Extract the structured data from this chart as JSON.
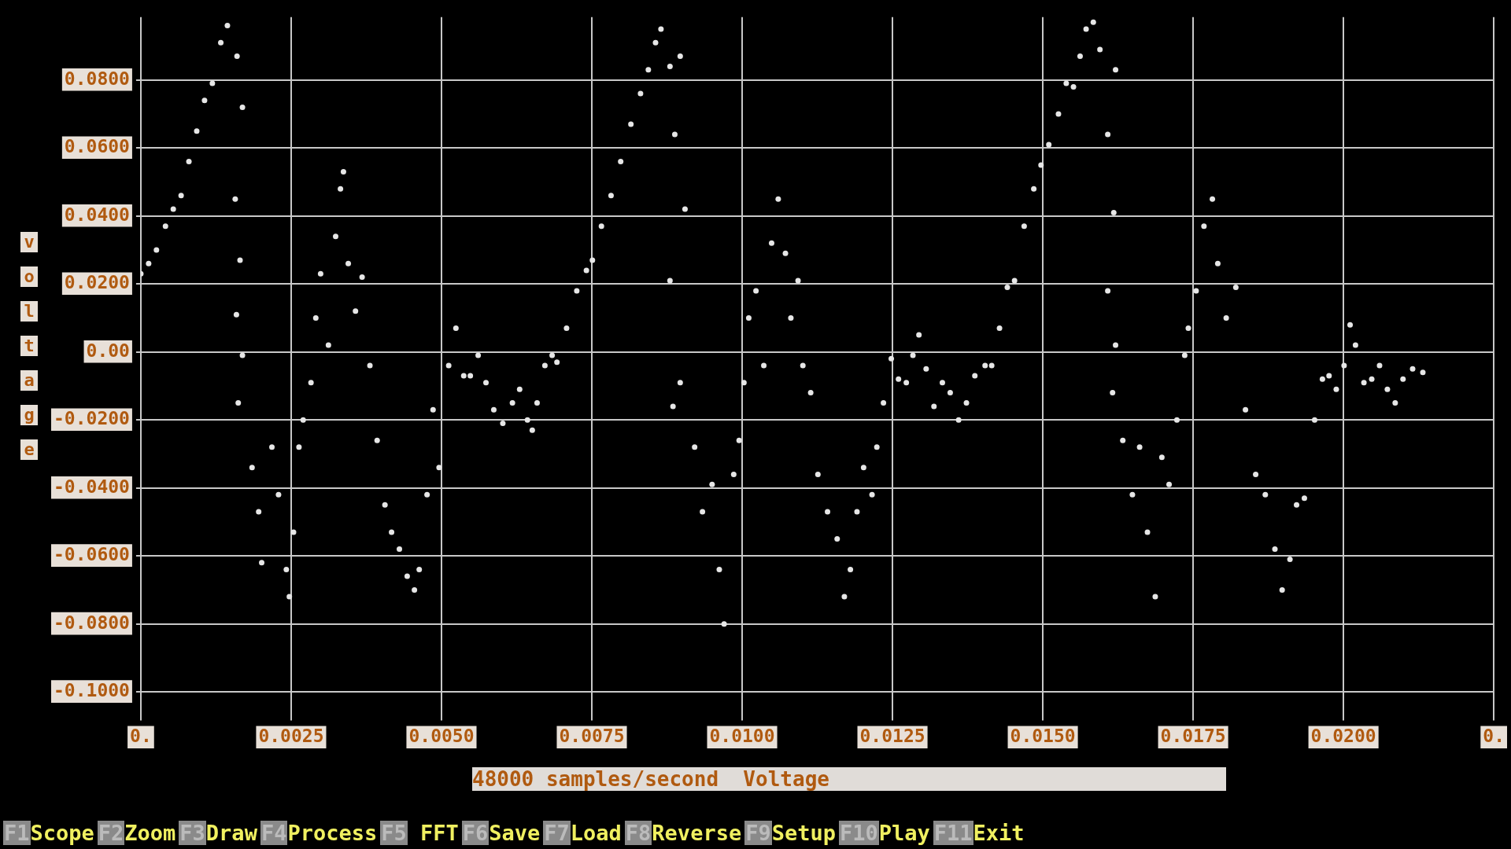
{
  "chart_data": {
    "type": "scatter",
    "xlabel": "48000 samples/second  Voltage",
    "ylabel": "voltage",
    "xlim": [
      0,
      0.0225
    ],
    "xticks": [
      {
        "value": 0,
        "label": "0."
      },
      {
        "value": 0.0025,
        "label": "0.0025"
      },
      {
        "value": 0.005,
        "label": "0.0050"
      },
      {
        "value": 0.0075,
        "label": "0.0075"
      },
      {
        "value": 0.01,
        "label": "0.0100"
      },
      {
        "value": 0.0125,
        "label": "0.0125"
      },
      {
        "value": 0.015,
        "label": "0.0150"
      },
      {
        "value": 0.0175,
        "label": "0.0175"
      },
      {
        "value": 0.02,
        "label": "0.0200"
      },
      {
        "value": 0.0225,
        "label": "0."
      }
    ],
    "ylim": [
      -0.107,
      0.0985
    ],
    "yticks": [
      {
        "value": 0.08,
        "label": "0.0800"
      },
      {
        "value": 0.06,
        "label": "0.0600"
      },
      {
        "value": 0.04,
        "label": "0.0400"
      },
      {
        "value": 0.02,
        "label": "0.0200"
      },
      {
        "value": 0,
        "label": "0.00"
      },
      {
        "value": -0.02,
        "label": "-0.0200"
      },
      {
        "value": -0.04,
        "label": "-0.0400"
      },
      {
        "value": -0.06,
        "label": "-0.0600"
      },
      {
        "value": -0.08,
        "label": "-0.0800"
      },
      {
        "value": -0.1,
        "label": "-0.1000"
      }
    ],
    "grid": true,
    "marker": "circle",
    "series": [
      {
        "color": "#e6e6e6",
        "x": [
          0,
          0.00013,
          0.00026,
          0.00041,
          0.00054,
          0.00067,
          0.0008,
          0.00093,
          0.00106,
          0.00119,
          0.00133,
          0.00144,
          0.0016,
          0.00169,
          0.00157,
          0.00165,
          0.00159,
          0.00169,
          0.00162,
          0.00185,
          0.00196,
          0.00201,
          0.00218,
          0.00229,
          0.00242,
          0.00247,
          0.00254,
          0.00263,
          0.0027,
          0.00283,
          0.00291,
          0.00299,
          0.00312,
          0.00324,
          0.00332,
          0.00337,
          0.00345,
          0.00357,
          0.00368,
          0.00381,
          0.00393,
          0.00406,
          0.00417,
          0.0043,
          0.00443,
          0.00455,
          0.00463,
          0.00476,
          0.00486,
          0.00496,
          0.00512,
          0.00524,
          0.00537,
          0.00548,
          0.00561,
          0.00574,
          0.00587,
          0.00602,
          0.00618,
          0.0063,
          0.00643,
          0.00651,
          0.00659,
          0.00672,
          0.00684,
          0.00692,
          0.00708,
          0.00725,
          0.00741,
          0.00751,
          0.00766,
          0.00782,
          0.00798,
          0.00815,
          0.00831,
          0.00844,
          0.00856,
          0.00865,
          0.0088,
          0.00897,
          0.00888,
          0.00905,
          0.0088,
          0.00897,
          0.00885,
          0.00921,
          0.00934,
          0.0095,
          0.00962,
          0.0097,
          0.00986,
          0.00995,
          0.01003,
          0.01011,
          0.01023,
          0.01036,
          0.01049,
          0.0106,
          0.01072,
          0.01081,
          0.01093,
          0.01101,
          0.01114,
          0.01126,
          0.01142,
          0.01158,
          0.0117,
          0.0118,
          0.01191,
          0.01202,
          0.01216,
          0.01224,
          0.01235,
          0.01248,
          0.0126,
          0.01273,
          0.01284,
          0.01294,
          0.01306,
          0.01319,
          0.01333,
          0.01346,
          0.0136,
          0.01373,
          0.01387,
          0.01404,
          0.01415,
          0.01428,
          0.01441,
          0.01453,
          0.01469,
          0.01485,
          0.01497,
          0.0151,
          0.01526,
          0.01539,
          0.01551,
          0.01562,
          0.01572,
          0.01584,
          0.01595,
          0.01608,
          0.01621,
          0.01618,
          0.01608,
          0.01621,
          0.01616,
          0.01633,
          0.01649,
          0.01661,
          0.01674,
          0.01687,
          0.01698,
          0.0171,
          0.01723,
          0.01736,
          0.01742,
          0.01755,
          0.01768,
          0.01782,
          0.01791,
          0.01805,
          0.01821,
          0.01837,
          0.01854,
          0.0187,
          0.01886,
          0.01898,
          0.01911,
          0.01922,
          0.01935,
          0.01952,
          0.01965,
          0.01976,
          0.01988,
          0.02001,
          0.02011,
          0.0202,
          0.02034,
          0.02047,
          0.0206,
          0.02073,
          0.02086,
          0.02099,
          0.02115,
          0.02132
        ],
        "values": [
          0.023,
          0.026,
          0.03,
          0.037,
          0.042,
          0.046,
          0.056,
          0.065,
          0.074,
          0.079,
          0.091,
          0.096,
          0.087,
          0.072,
          0.045,
          0.027,
          0.011,
          -0.001,
          -0.015,
          -0.034,
          -0.047,
          -0.062,
          -0.028,
          -0.042,
          -0.064,
          -0.072,
          -0.053,
          -0.028,
          -0.02,
          -0.009,
          0.01,
          0.023,
          0.002,
          0.034,
          0.048,
          0.053,
          0.026,
          0.012,
          0.022,
          -0.004,
          -0.026,
          -0.045,
          -0.053,
          -0.058,
          -0.066,
          -0.07,
          -0.064,
          -0.042,
          -0.017,
          -0.034,
          -0.004,
          0.007,
          -0.007,
          -0.007,
          -0.001,
          -0.009,
          -0.017,
          -0.021,
          -0.015,
          -0.011,
          -0.02,
          -0.023,
          -0.015,
          -0.004,
          -0.001,
          -0.003,
          0.007,
          0.018,
          0.024,
          0.027,
          0.037,
          0.046,
          0.056,
          0.067,
          0.076,
          0.083,
          0.091,
          0.095,
          0.084,
          0.087,
          0.064,
          0.042,
          0.021,
          -0.009,
          -0.016,
          -0.028,
          -0.047,
          -0.039,
          -0.064,
          -0.08,
          -0.036,
          -0.026,
          -0.009,
          0.01,
          0.018,
          -0.004,
          0.032,
          0.045,
          0.029,
          0.01,
          0.021,
          -0.004,
          -0.012,
          -0.036,
          -0.047,
          -0.055,
          -0.072,
          -0.064,
          -0.047,
          -0.034,
          -0.042,
          -0.028,
          -0.015,
          -0.002,
          -0.008,
          -0.009,
          -0.001,
          0.005,
          -0.005,
          -0.016,
          -0.009,
          -0.012,
          -0.02,
          -0.015,
          -0.007,
          -0.004,
          -0.004,
          0.007,
          0.019,
          0.021,
          0.037,
          0.048,
          0.055,
          0.061,
          0.07,
          0.079,
          0.078,
          0.087,
          0.095,
          0.097,
          0.089,
          0.064,
          0.083,
          0.041,
          0.018,
          0.002,
          -0.012,
          -0.026,
          -0.042,
          -0.028,
          -0.053,
          -0.072,
          -0.031,
          -0.039,
          -0.02,
          -0.001,
          0.007,
          0.018,
          0.037,
          0.045,
          0.026,
          0.01,
          0.019,
          -0.017,
          -0.036,
          -0.042,
          -0.058,
          -0.07,
          -0.061,
          -0.045,
          -0.043,
          -0.02,
          -0.008,
          -0.007,
          -0.011,
          -0.004,
          0.008,
          0.002,
          -0.009,
          -0.008,
          -0.004,
          -0.011,
          -0.015,
          -0.008,
          -0.005,
          -0.006
        ]
      }
    ],
    "annotations": [
      "F1Scope",
      "F2Zoom",
      "F3Draw",
      "F4Process",
      "F5 FFT",
      "F6Save",
      "F7Load",
      "F8Reverse",
      "F9Setup",
      "F10Play",
      "F11Exit"
    ]
  }
}
